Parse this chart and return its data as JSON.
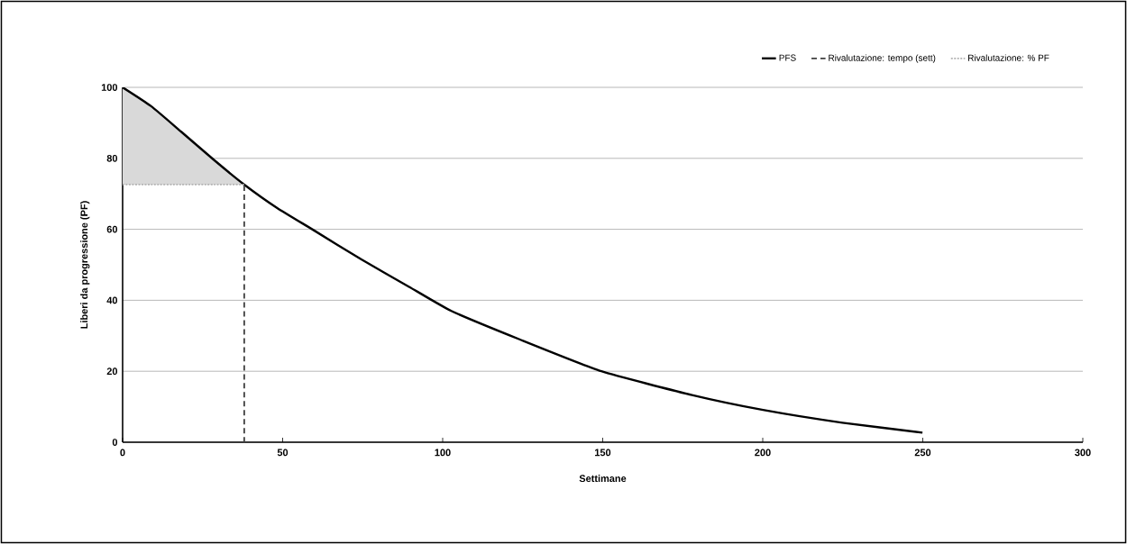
{
  "chart_data": {
    "type": "line",
    "xlabel": "Settimane",
    "ylabel": "Liberi da progressione (PF)",
    "xlim": [
      0,
      300
    ],
    "ylim": [
      0,
      100
    ],
    "xticks": [
      0,
      50,
      100,
      150,
      200,
      250,
      300
    ],
    "yticks": [
      0,
      20,
      40,
      60,
      80,
      100
    ],
    "grid": "y",
    "legend": "top right",
    "marker": "none",
    "series": [
      {
        "name": "PFS",
        "color": "#000000",
        "line_style": "solid",
        "x": [
          0,
          8.9,
          18.3,
          28.6,
          38,
          48.3,
          59.6,
          74.6,
          89.5,
          102.7,
          124,
          149.6,
          177.9,
          200.1,
          224.9,
          249.9
        ],
        "values": [
          100,
          94.7,
          87.5,
          79.5,
          72.6,
          66,
          59.8,
          51.5,
          43.8,
          37,
          29,
          20,
          13.3,
          9.1,
          5.5,
          2.7
        ]
      },
      {
        "name": "Rivalutazione: tempo (sett)",
        "color": "#404040",
        "line_style": "dashed",
        "x": [
          38,
          38
        ],
        "values": [
          0,
          72.6
        ]
      },
      {
        "name": "Rivalutazione: % PF",
        "color": "#b3b3b3",
        "line_style": "dotted",
        "x": [
          0,
          8.9,
          18.3,
          28.6,
          38
        ],
        "values": [
          72.6,
          72.6,
          72.6,
          72.6,
          72.6
        ],
        "lower": [
          72.6,
          72.6,
          72.6,
          72.6,
          72.6
        ],
        "upper": [
          100,
          94.7,
          87.5,
          79.5,
          72.6
        ]
      }
    ]
  }
}
